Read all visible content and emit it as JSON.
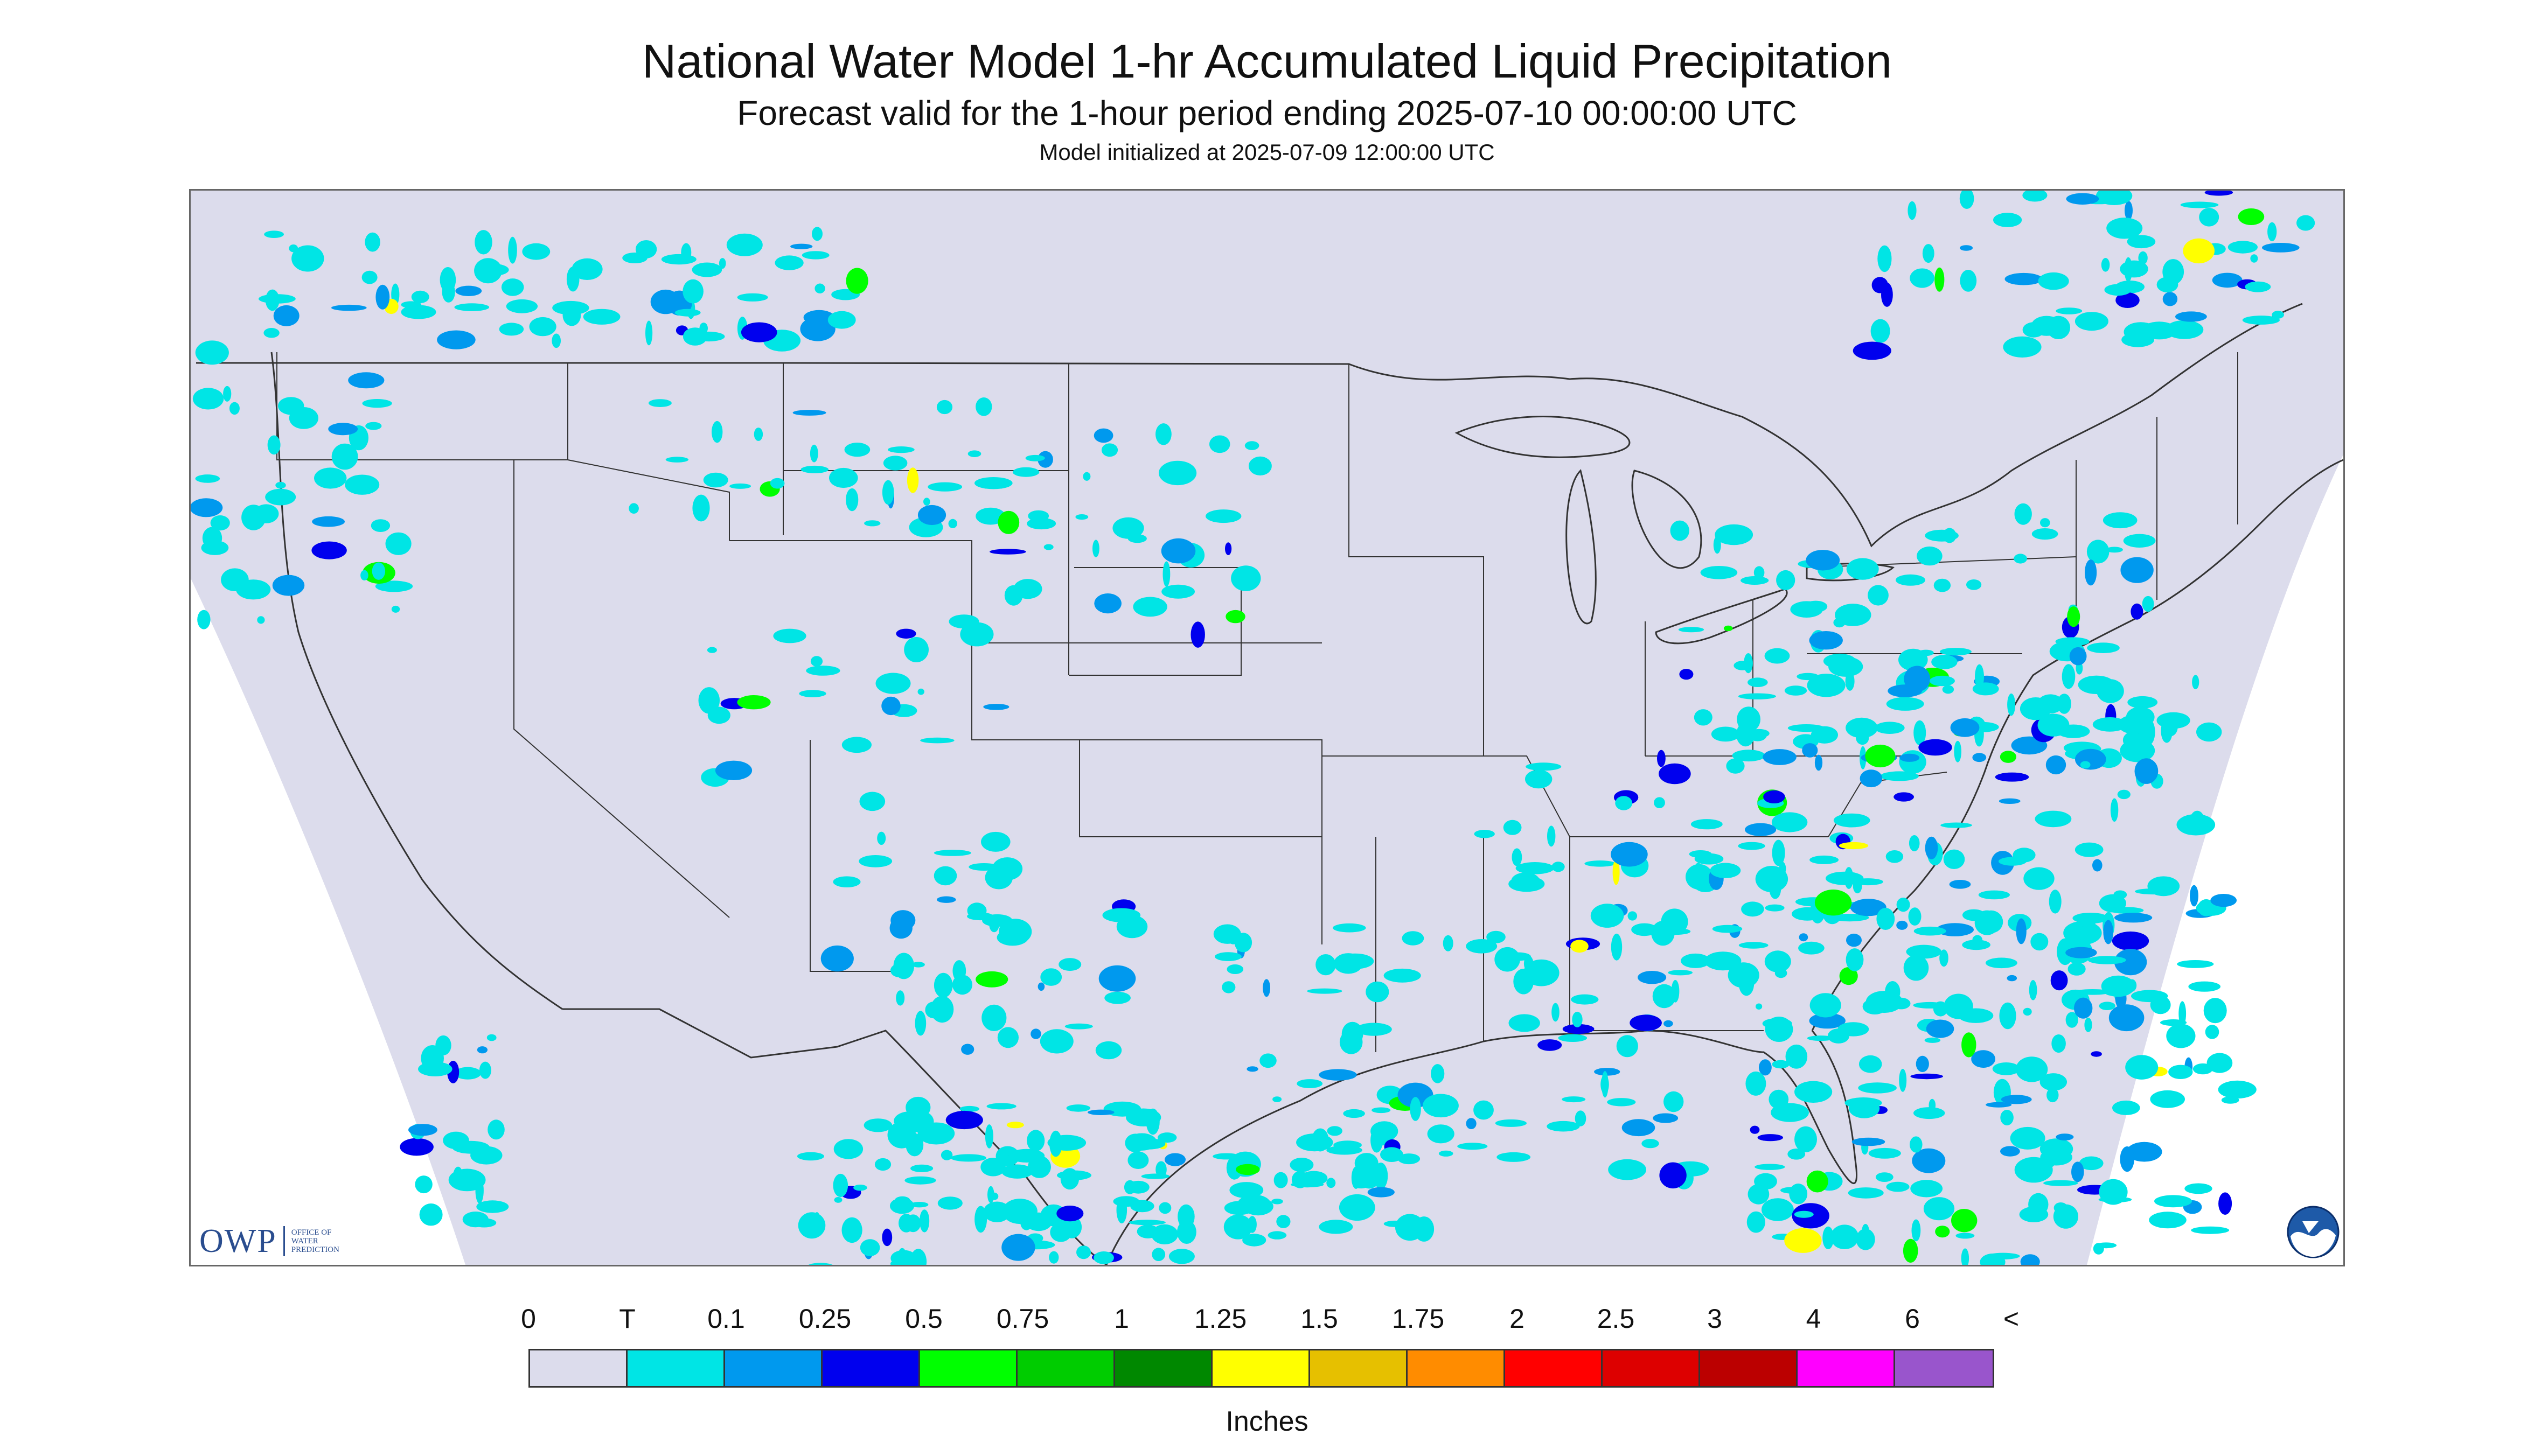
{
  "title": "National Water Model 1-hr Accumulated Liquid Precipitation",
  "subtitle": "Forecast valid for the 1-hour period ending 2025-07-10 00:00:00 UTC",
  "init": "Model initialized at 2025-07-09 12:00:00 UTC",
  "logo": {
    "letters": "OWP",
    "text": "OFFICE OF WATER PREDICTION",
    "agency_icon": "noaa-logo-icon"
  },
  "colors": {
    "map_background": "#dcdcec",
    "outside_domain": "#ffffff",
    "boundaries": "#333333"
  },
  "legend": {
    "labels": [
      "0",
      "T",
      "0.1",
      "0.25",
      "0.5",
      "0.75",
      "1",
      "1.25",
      "1.5",
      "1.75",
      "2",
      "2.5",
      "3",
      "4",
      "6",
      "<"
    ],
    "colors": [
      "#dcdcec",
      "#00e5e5",
      "#0099ee",
      "#0000ee",
      "#00ff00",
      "#00cc00",
      "#008800",
      "#ffff00",
      "#e6c000",
      "#ff8c00",
      "#ff0000",
      "#dd0000",
      "#bb0000",
      "#ff00ff",
      "#9955cc"
    ],
    "units": "Inches"
  }
}
